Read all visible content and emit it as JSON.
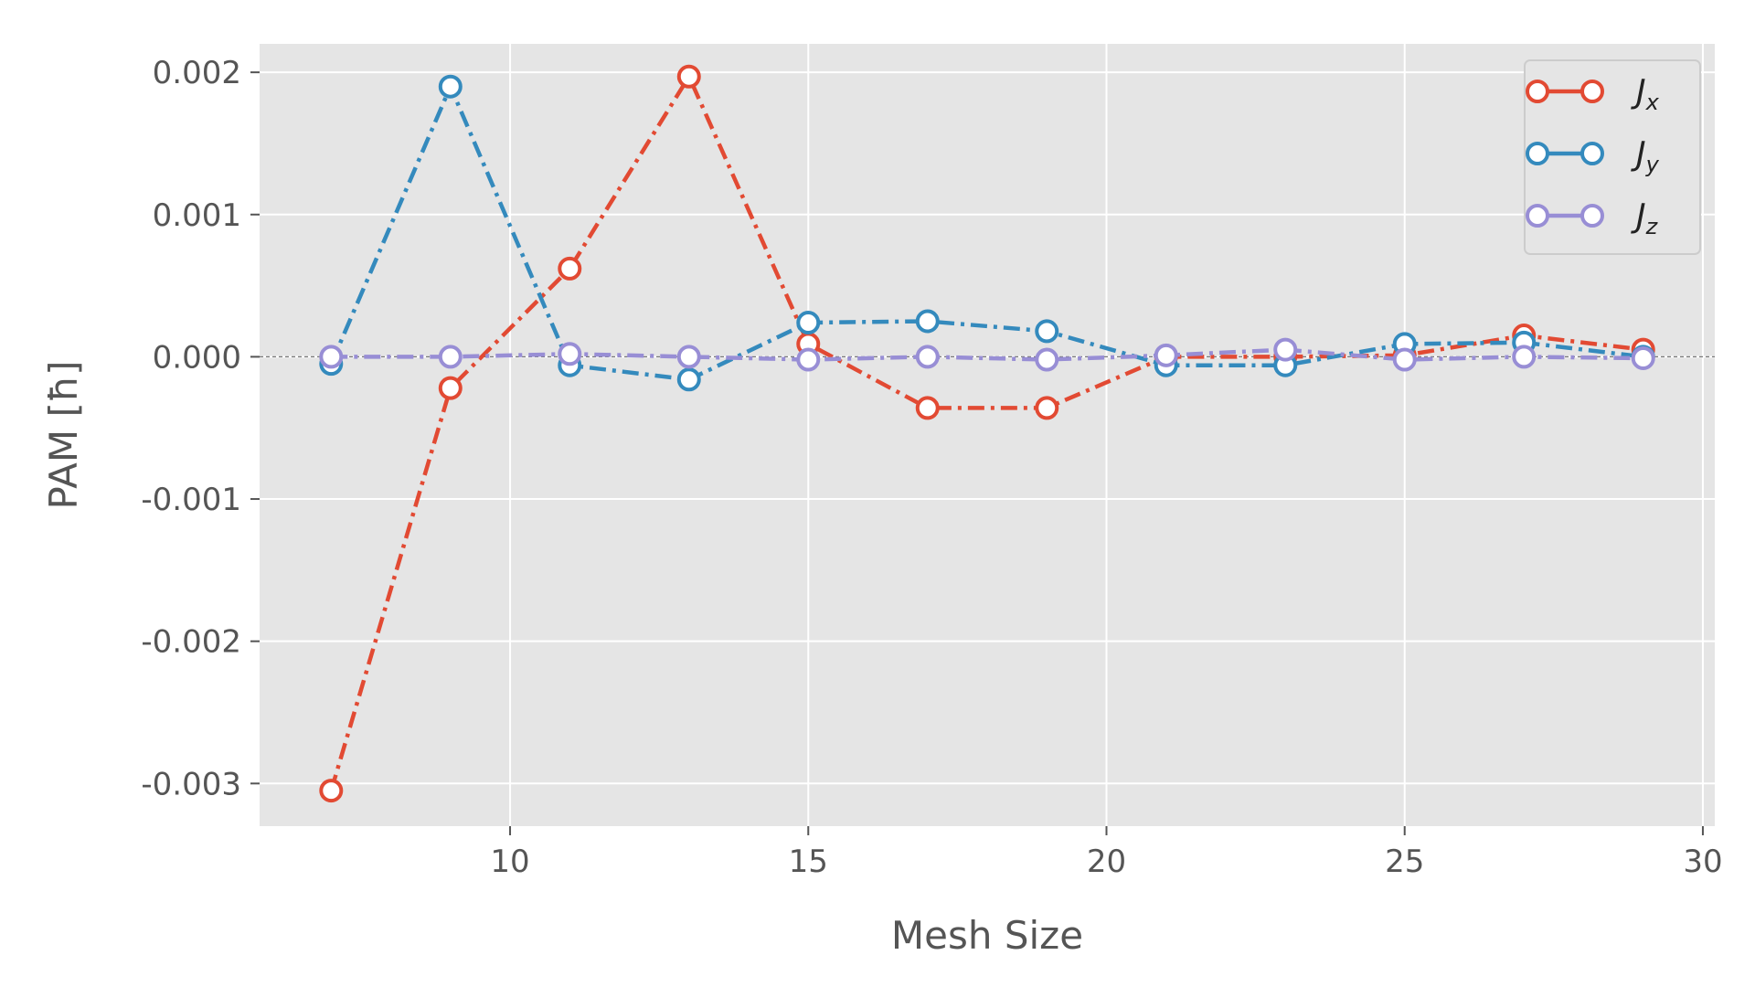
{
  "chart_data": {
    "type": "line",
    "xlabel": "Mesh Size",
    "ylabel": "PAM [ħ]",
    "xlim": [
      5.8,
      30.2
    ],
    "ylim": [
      -0.0033,
      0.0022
    ],
    "xticks": [
      10,
      15,
      20,
      25,
      30
    ],
    "xtick_labels": [
      "10",
      "15",
      "20",
      "25",
      "30"
    ],
    "yticks": [
      -0.003,
      -0.002,
      -0.001,
      0.0,
      0.001,
      0.002
    ],
    "ytick_labels": [
      "-0.003",
      "-0.002",
      "-0.001",
      "0.000",
      "0.001",
      "0.002"
    ],
    "grid": true,
    "zero_line": true,
    "legend_position": "top-right",
    "x": [
      7,
      9,
      11,
      13,
      15,
      17,
      19,
      21,
      23,
      25,
      27,
      29
    ],
    "series": [
      {
        "name": "J",
        "subscript": "x",
        "color": "#E24A33",
        "values": [
          -0.00305,
          -0.00022,
          0.00062,
          0.00197,
          9e-05,
          -0.00036,
          -0.00036,
          0.0,
          0.0,
          1e-05,
          0.00015,
          5e-05
        ]
      },
      {
        "name": "J",
        "subscript": "y",
        "color": "#348ABD",
        "values": [
          -5e-05,
          0.0019,
          -6e-05,
          -0.00016,
          0.00024,
          0.00025,
          0.00018,
          -6e-05,
          -6e-05,
          9e-05,
          0.0001,
          0.0
        ]
      },
      {
        "name": "J",
        "subscript": "z",
        "color": "#988ED5",
        "values": [
          0.0,
          0.0,
          2e-05,
          0.0,
          -2e-05,
          0.0,
          -2e-05,
          1e-05,
          5e-05,
          -2e-05,
          0.0,
          -1e-05
        ]
      }
    ],
    "colors": {
      "plot_background": "#E5E5E5",
      "grid": "#FFFFFF",
      "zero_line": "#777777",
      "marker_fill": "#FFFFFF",
      "legend_background": "#E5E5E5",
      "legend_border": "#CCCCCC"
    }
  }
}
